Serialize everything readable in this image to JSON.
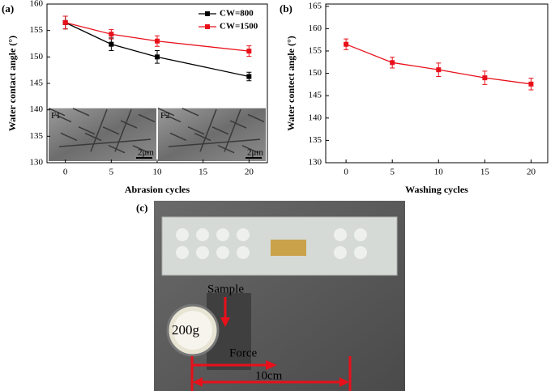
{
  "chart_data": [
    {
      "type": "line",
      "label": "(a)",
      "xlabel": "Abrasion cycles",
      "ylabel": "Water contact angle (°)",
      "x": [
        0,
        5,
        10,
        20
      ],
      "xlim": [
        -2,
        22
      ],
      "xticks": [
        0,
        5,
        10,
        15,
        20
      ],
      "ylim": [
        130,
        160
      ],
      "yticks": [
        130,
        135,
        140,
        145,
        150,
        155,
        160
      ],
      "legend": "upper right",
      "series": [
        {
          "name": "CW=800",
          "color": "#000000",
          "values": [
            156.5,
            152.4,
            150,
            146.3
          ],
          "errors": [
            1.2,
            1.2,
            1.2,
            0.8
          ]
        },
        {
          "name": "CW=1500",
          "color": "#e8101a",
          "values": [
            156.5,
            154.3,
            153,
            151.1
          ],
          "errors": [
            1.2,
            0.9,
            1.0,
            1.0
          ]
        }
      ],
      "insets": [
        {
          "label": "F1",
          "scale": "2μm"
        },
        {
          "label": "F2",
          "scale": "2μm"
        }
      ]
    },
    {
      "type": "line",
      "label": "(b)",
      "xlabel": "Washing cycles",
      "ylabel": "Water contect angle (°)",
      "x": [
        0,
        5,
        10,
        15,
        20
      ],
      "xlim": [
        -2.2,
        21.8
      ],
      "xticks": [
        0,
        5,
        10,
        15,
        20
      ],
      "ylim": [
        130,
        165.5
      ],
      "yticks": [
        130,
        135,
        140,
        145,
        150,
        155,
        160,
        165
      ],
      "series": [
        {
          "name": null,
          "color": "#e8101a",
          "values": [
            156.5,
            152.4,
            150.8,
            149,
            147.6
          ],
          "errors": [
            1.2,
            1.2,
            1.5,
            1.5,
            1.3
          ]
        }
      ]
    }
  ],
  "photo": {
    "label": "(c)",
    "sample": "Sample",
    "weight": "200g",
    "force": "Force",
    "distance": "10cm"
  }
}
